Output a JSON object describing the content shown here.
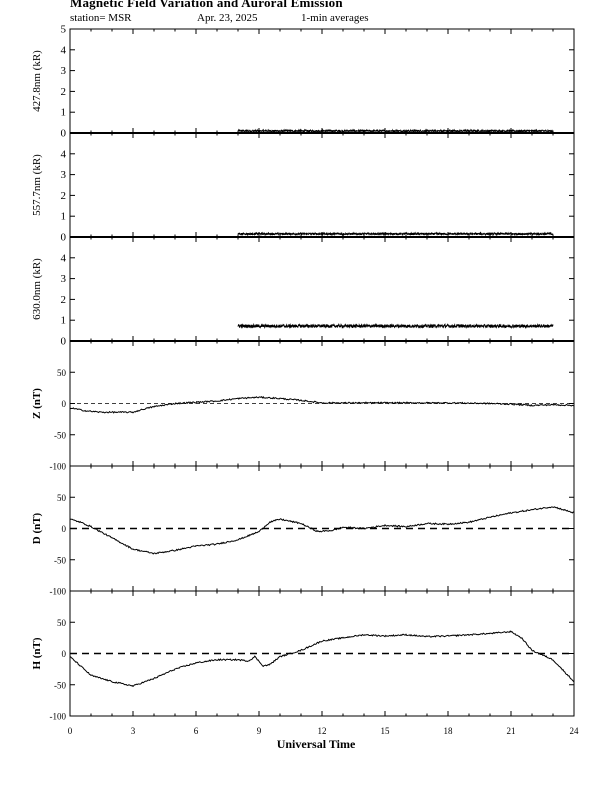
{
  "header": {
    "title": "Magnetic Field Variation and Auroral Emission",
    "station": "station= MSR",
    "date": "Apr. 23, 2025",
    "averaging": "1-min averages"
  },
  "chart_data": [
    {
      "type": "line",
      "ylabel": "427.8nm (kR)",
      "ylim": [
        0,
        5
      ],
      "yticks": [
        0,
        1,
        2,
        3,
        4,
        5
      ],
      "xlim": [
        0,
        24
      ],
      "series": [
        {
          "x_start": 8.0,
          "x_end": 23.0,
          "level": 0.1,
          "noise": 0.05
        }
      ]
    },
    {
      "type": "line",
      "ylabel": "557.7nm (kR)",
      "ylim": [
        0,
        5
      ],
      "yticks": [
        0,
        1,
        2,
        3,
        4
      ],
      "xlim": [
        0,
        24
      ],
      "series": [
        {
          "x_start": 8.0,
          "x_end": 23.0,
          "level": 0.15,
          "noise": 0.05
        }
      ]
    },
    {
      "type": "line",
      "ylabel": "630.0nm (kR)",
      "ylim": [
        0,
        5
      ],
      "yticks": [
        0,
        1,
        2,
        3,
        4
      ],
      "xlim": [
        0,
        24
      ],
      "series": [
        {
          "x_start": 8.0,
          "x_end": 23.0,
          "level": 0.72,
          "noise": 0.08
        }
      ]
    },
    {
      "type": "line",
      "ylabel": "Z (nT)",
      "ylim": [
        -100,
        100
      ],
      "yticks": [
        -100,
        -50,
        0,
        50
      ],
      "zero_line": "thin-dashed",
      "xlim": [
        0,
        24
      ],
      "series": [
        {
          "points": [
            [
              0,
              -7
            ],
            [
              0.8,
              -12
            ],
            [
              1.5,
              -14
            ],
            [
              3,
              -14
            ],
            [
              3.5,
              -9
            ],
            [
              4,
              -5
            ],
            [
              5,
              0
            ],
            [
              6,
              2
            ],
            [
              7,
              4
            ],
            [
              8,
              8
            ],
            [
              9,
              10
            ],
            [
              10,
              8
            ],
            [
              11,
              5
            ],
            [
              12,
              1
            ],
            [
              14,
              1
            ],
            [
              16,
              1
            ],
            [
              18,
              1
            ],
            [
              20,
              0
            ],
            [
              21,
              -1
            ],
            [
              22,
              -3
            ],
            [
              23,
              -2
            ],
            [
              24,
              -3
            ]
          ]
        }
      ]
    },
    {
      "type": "line",
      "ylabel": "D (nT)",
      "ylim": [
        -100,
        100
      ],
      "yticks": [
        -100,
        -50,
        0,
        50
      ],
      "zero_line": "dashed",
      "xlim": [
        0,
        24
      ],
      "series": [
        {
          "points": [
            [
              0,
              15
            ],
            [
              0.5,
              10
            ],
            [
              1,
              3
            ],
            [
              2,
              -15
            ],
            [
              3,
              -33
            ],
            [
              4,
              -40
            ],
            [
              5,
              -35
            ],
            [
              6,
              -28
            ],
            [
              7,
              -25
            ],
            [
              8,
              -18
            ],
            [
              9,
              -5
            ],
            [
              9.5,
              10
            ],
            [
              10,
              15
            ],
            [
              11,
              8
            ],
            [
              11.8,
              -5
            ],
            [
              12.5,
              -3
            ],
            [
              13,
              2
            ],
            [
              14,
              0
            ],
            [
              15,
              5
            ],
            [
              16,
              3
            ],
            [
              17,
              8
            ],
            [
              18,
              7
            ],
            [
              19,
              10
            ],
            [
              20,
              18
            ],
            [
              21,
              25
            ],
            [
              22,
              30
            ],
            [
              23,
              35
            ],
            [
              24,
              25
            ]
          ]
        }
      ]
    },
    {
      "type": "line",
      "ylabel": "H (nT)",
      "ylim": [
        -100,
        100
      ],
      "yticks": [
        -100,
        -50,
        0,
        50
      ],
      "zero_line": "dashed",
      "xlim": [
        0,
        24
      ],
      "series": [
        {
          "points": [
            [
              0,
              -5
            ],
            [
              0.5,
              -20
            ],
            [
              1,
              -35
            ],
            [
              2,
              -45
            ],
            [
              3,
              -52
            ],
            [
              4,
              -40
            ],
            [
              5,
              -25
            ],
            [
              6,
              -15
            ],
            [
              7,
              -10
            ],
            [
              8,
              -10
            ],
            [
              8.5,
              -12
            ],
            [
              8.8,
              -5
            ],
            [
              9.2,
              -20
            ],
            [
              9.5,
              -18
            ],
            [
              10,
              -5
            ],
            [
              11,
              5
            ],
            [
              12,
              20
            ],
            [
              13,
              25
            ],
            [
              14,
              30
            ],
            [
              15,
              28
            ],
            [
              16,
              30
            ],
            [
              17,
              27
            ],
            [
              18,
              28
            ],
            [
              19,
              30
            ],
            [
              20,
              32
            ],
            [
              21,
              35
            ],
            [
              21.5,
              25
            ],
            [
              22,
              5
            ],
            [
              23,
              -10
            ],
            [
              24,
              -45
            ]
          ]
        }
      ]
    }
  ],
  "x_axis": {
    "label": "Universal Time",
    "ticks": [
      0,
      3,
      6,
      9,
      12,
      15,
      18,
      21,
      24
    ]
  }
}
